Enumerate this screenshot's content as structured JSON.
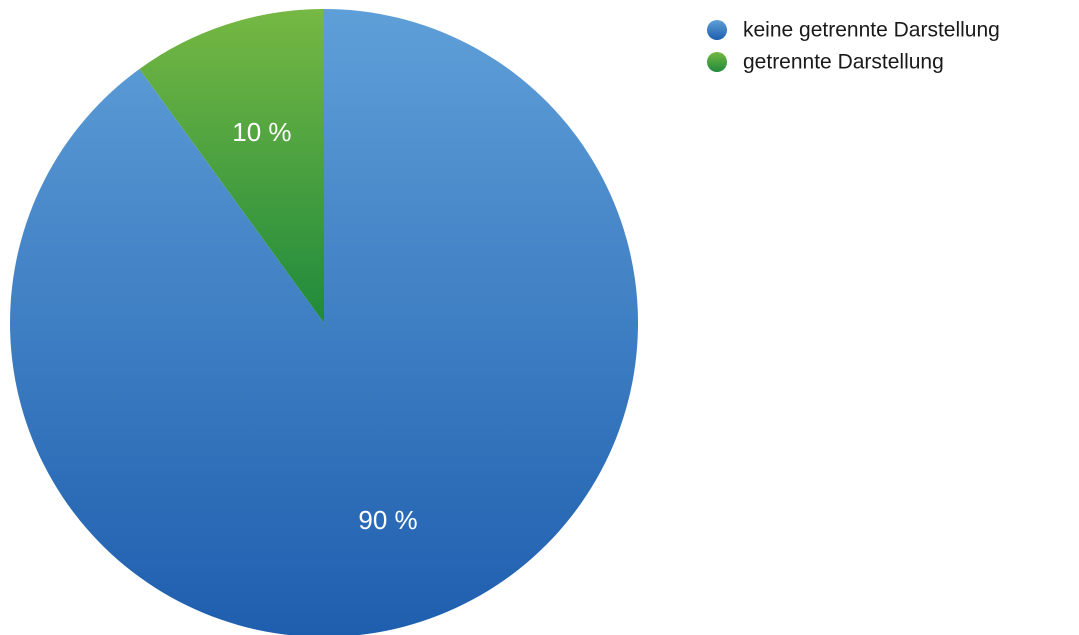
{
  "chart_data": {
    "type": "pie",
    "categories": [
      "keine getrennte Darstellung",
      "getrennte Darstellung"
    ],
    "values": [
      90,
      10
    ],
    "value_labels": [
      "90 %",
      "10 %"
    ],
    "colors": [
      "#3a86cc",
      "#3ea33f"
    ],
    "legend_position": "top-right",
    "start_angle_deg": 0,
    "direction": "clockwise"
  }
}
